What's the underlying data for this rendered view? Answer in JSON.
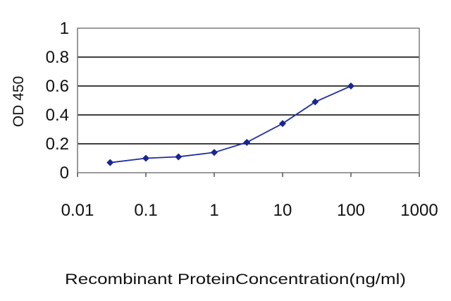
{
  "chart_data": {
    "type": "line",
    "title": "",
    "xlabel": "Recombinant ProteinConcentration(ng/ml)",
    "ylabel": "OD 450",
    "x_scale": "log",
    "xlim": [
      0.01,
      1000
    ],
    "ylim": [
      0,
      1
    ],
    "x_ticks": [
      "0.01",
      "0.1",
      "1",
      "10",
      "100",
      "1000"
    ],
    "y_ticks": [
      "0",
      "0.2",
      "0.4",
      "0.6",
      "0.8",
      "1"
    ],
    "grid": "horizontal",
    "legend": "none",
    "colors": {
      "series": "#1f2ea0",
      "marker": "#1a2690",
      "gridline": "#000000",
      "plot_border": "#7a7a7a"
    },
    "series": [
      {
        "x": [
          0.03,
          0.1,
          0.3,
          1,
          3,
          10,
          30,
          100
        ],
        "y": [
          0.07,
          0.1,
          0.11,
          0.14,
          0.21,
          0.34,
          0.49,
          0.6
        ]
      }
    ]
  }
}
